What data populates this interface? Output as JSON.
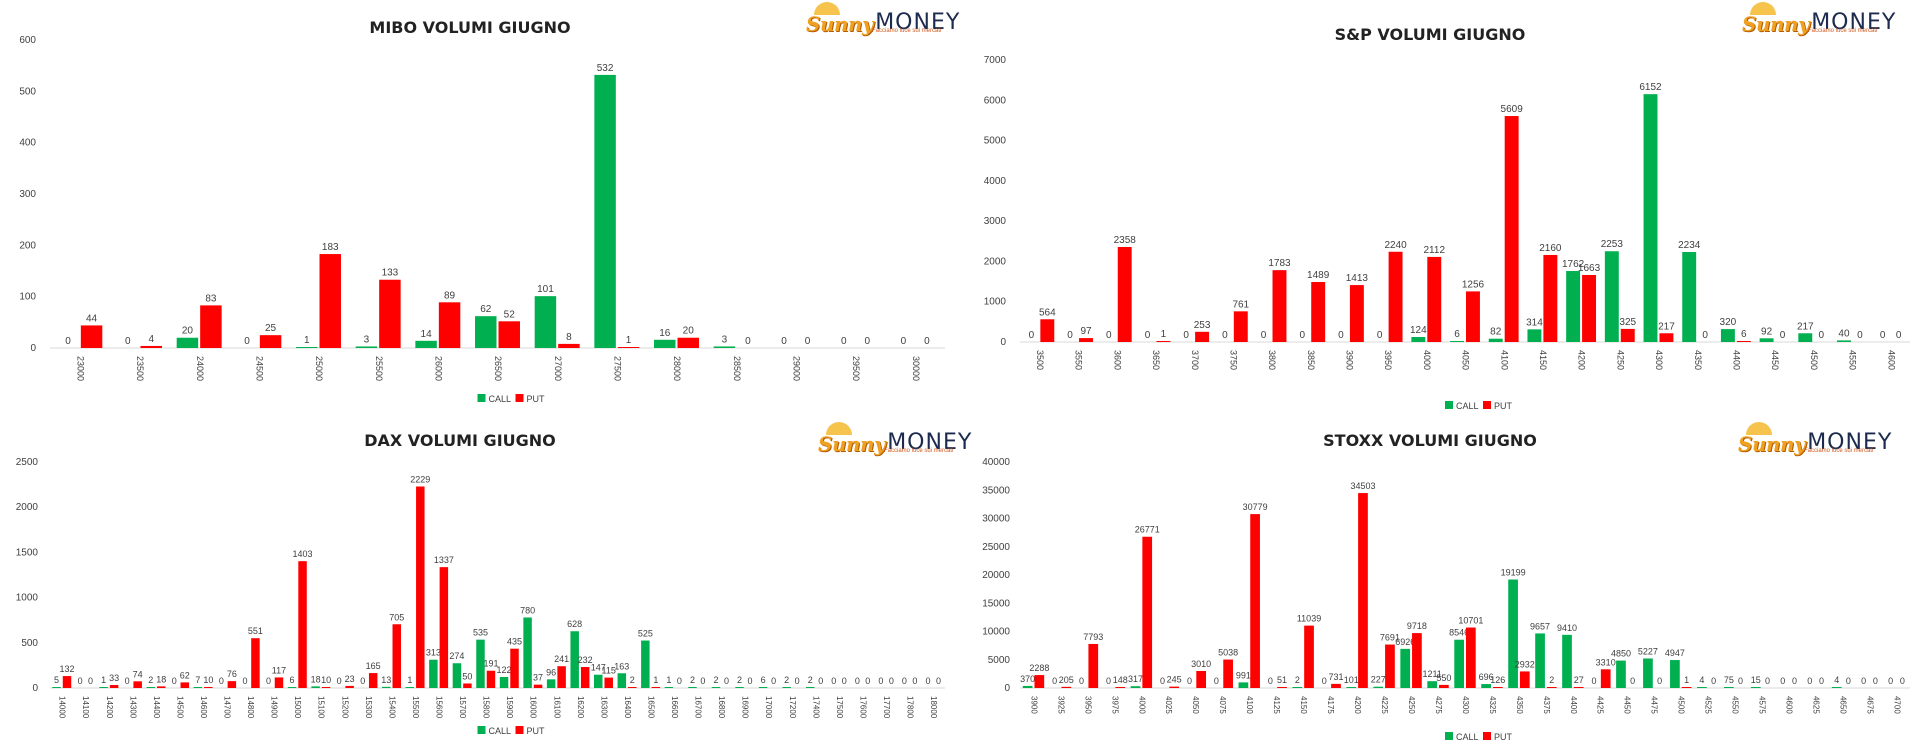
{
  "logo": {
    "sunny": "Sunny",
    "money": "MONEY",
    "tagline": "Facciamo luce sui mercati"
  },
  "colors": {
    "call": "#00b050",
    "put": "#ff0000"
  },
  "chart_data": [
    {
      "id": "mibo",
      "type": "bar",
      "title": "MIBO VOLUMI GIUGNO",
      "ylim": [
        0,
        600
      ],
      "yticks": [
        0,
        100,
        200,
        300,
        400,
        500,
        600
      ],
      "legend": "bottom-center",
      "categories": [
        "23000",
        "23500",
        "24000",
        "24500",
        "25000",
        "25500",
        "26000",
        "26500",
        "27000",
        "27500",
        "28000",
        "28500",
        "29000",
        "29500",
        "30000"
      ],
      "series": [
        {
          "name": "CALL",
          "values": [
            0,
            0,
            20,
            0,
            1,
            3,
            14,
            62,
            101,
            532,
            16,
            3,
            0,
            0,
            0
          ]
        },
        {
          "name": "PUT",
          "values": [
            44,
            4,
            83,
            25,
            183,
            133,
            89,
            52,
            8,
            1,
            20,
            0,
            0,
            0,
            0
          ]
        }
      ]
    },
    {
      "id": "sp",
      "type": "bar",
      "title": "S&P VOLUMI GIUGNO",
      "ylim": [
        0,
        7000
      ],
      "yticks": [
        0,
        1000,
        2000,
        3000,
        4000,
        5000,
        6000,
        7000
      ],
      "legend": "bottom-center",
      "categories": [
        "3500",
        "3550",
        "3600",
        "3650",
        "3700",
        "3750",
        "3800",
        "3850",
        "3900",
        "3950",
        "4000",
        "4050",
        "4100",
        "4150",
        "4200",
        "4250",
        "4300",
        "4350",
        "4400",
        "4450",
        "4500",
        "4550",
        "4600"
      ],
      "series": [
        {
          "name": "CALL",
          "values": [
            0,
            0,
            0,
            0,
            0,
            0,
            0,
            0,
            0,
            0,
            124,
            6,
            82,
            314,
            1762,
            2253,
            6152,
            2234,
            320,
            92,
            217,
            40,
            0
          ]
        },
        {
          "name": "PUT",
          "values": [
            564,
            97,
            2358,
            1,
            253,
            761,
            1783,
            1489,
            1413,
            2240,
            2112,
            1256,
            5609,
            2160,
            1663,
            325,
            217,
            0,
            6,
            0,
            0,
            0,
            0
          ]
        }
      ]
    },
    {
      "id": "dax",
      "type": "bar",
      "title": "DAX VOLUMI GIUGNO",
      "ylim": [
        0,
        2500
      ],
      "yticks": [
        0,
        500,
        1000,
        1500,
        2000,
        2500
      ],
      "legend": "bottom-center",
      "categories": [
        "14000",
        "14100",
        "14200",
        "14300",
        "14400",
        "14500",
        "14600",
        "14700",
        "14800",
        "14900",
        "15000",
        "15100",
        "15200",
        "15300",
        "15400",
        "15500",
        "15600",
        "15700",
        "15800",
        "15900",
        "16000",
        "16100",
        "16200",
        "16300",
        "16400",
        "16500",
        "16600",
        "16700",
        "16800",
        "16900",
        "17000",
        "17200",
        "17400",
        "17500",
        "17600",
        "17700",
        "17800",
        "18000"
      ],
      "series": [
        {
          "name": "CALL",
          "values": [
            5,
            0,
            1,
            0,
            2,
            0,
            7,
            0,
            0,
            0,
            6,
            18,
            0,
            0,
            13,
            1,
            313,
            274,
            535,
            122,
            780,
            96,
            628,
            147,
            163,
            525,
            1,
            2,
            2,
            2,
            6,
            2,
            2,
            0,
            0,
            0,
            0,
            0
          ]
        },
        {
          "name": "PUT",
          "values": [
            132,
            0,
            33,
            74,
            18,
            62,
            10,
            76,
            551,
            117,
            1403,
            10,
            23,
            165,
            705,
            2229,
            1337,
            50,
            191,
            435,
            37,
            241,
            232,
            115,
            2,
            1,
            0,
            0,
            0,
            0,
            0,
            0,
            0,
            0,
            0,
            0,
            0,
            0
          ]
        }
      ]
    },
    {
      "id": "stoxx",
      "type": "bar",
      "title": "STOXX VOLUMI GIUGNO",
      "ylim": [
        0,
        40000
      ],
      "yticks": [
        0,
        5000,
        10000,
        15000,
        20000,
        25000,
        30000,
        35000,
        40000
      ],
      "legend": "bottom-center",
      "categories": [
        "3900",
        "3925",
        "3950",
        "3975",
        "4000",
        "4025",
        "4050",
        "4075",
        "4100",
        "4125",
        "4150",
        "4175",
        "4200",
        "4225",
        "4250",
        "4275",
        "4300",
        "4325",
        "4350",
        "4375",
        "4400",
        "4425",
        "4450",
        "4475",
        "4500",
        "4525",
        "4550",
        "4575",
        "4600",
        "4625",
        "4650",
        "4675",
        "4700"
      ],
      "series": [
        {
          "name": "CALL",
          "values": [
            370,
            0,
            0,
            0,
            317,
            0,
            0,
            0,
            991,
            0,
            2,
            0,
            101,
            227,
            6926,
            1211,
            8546,
            696,
            19199,
            9657,
            9410,
            0,
            4850,
            5227,
            4947,
            4,
            75,
            15,
            0,
            0,
            4,
            0,
            0
          ]
        },
        {
          "name": "PUT",
          "values": [
            2288,
            205,
            7793,
            148,
            26771,
            245,
            3010,
            5038,
            30779,
            51,
            11039,
            731,
            34503,
            7691,
            9718,
            550,
            10701,
            126,
            2932,
            2,
            27,
            3310,
            0,
            0,
            1,
            0,
            0,
            0,
            0,
            0,
            0,
            0,
            0
          ]
        }
      ]
    }
  ]
}
